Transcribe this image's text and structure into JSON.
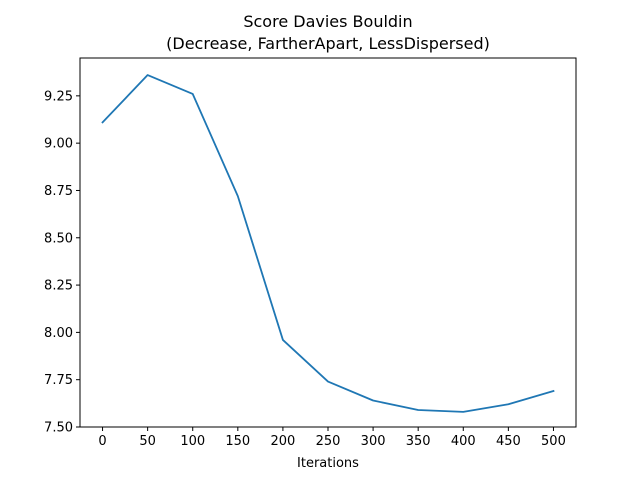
{
  "chart_data": {
    "type": "line",
    "title_line1": "Score Davies Bouldin",
    "title_line2": "(Decrease, FartherApart, LessDispersed)",
    "xlabel": "Iterations",
    "ylabel": "",
    "x": [
      0,
      50,
      100,
      150,
      200,
      250,
      300,
      350,
      400,
      450,
      500
    ],
    "series": [
      {
        "values": [
          9.11,
          9.36,
          9.26,
          8.72,
          7.96,
          7.74,
          7.64,
          7.59,
          7.58,
          7.62,
          7.69
        ],
        "color": "#1f77b4"
      }
    ],
    "xticks": [
      "0",
      "50",
      "100",
      "150",
      "200",
      "250",
      "300",
      "350",
      "400",
      "450",
      "500"
    ],
    "yticks": [
      "7.50",
      "7.75",
      "8.00",
      "8.25",
      "8.50",
      "8.75",
      "9.00",
      "9.25"
    ],
    "xlim": [
      -25,
      525
    ],
    "ylim": [
      7.5,
      9.45
    ],
    "grid": false,
    "legend": "none"
  }
}
